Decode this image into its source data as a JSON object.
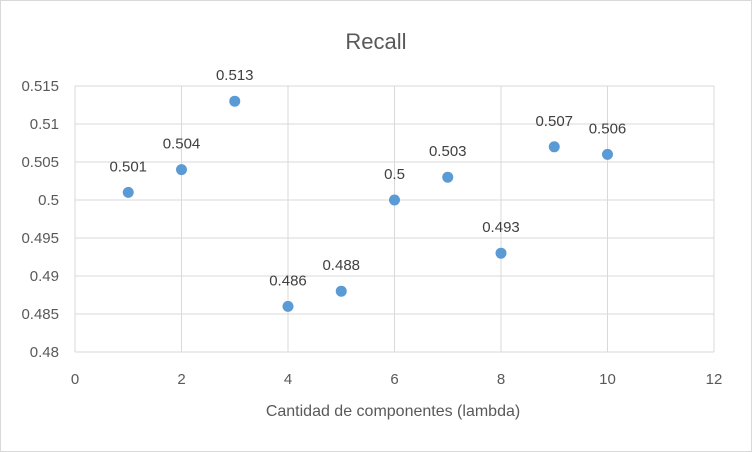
{
  "chart_data": {
    "type": "scatter",
    "title": "Recall",
    "xlabel": "Cantidad de componentes (lambda)",
    "ylabel": "",
    "xlim": [
      0,
      12
    ],
    "ylim": [
      0.48,
      0.515
    ],
    "x_ticks": [
      "0",
      "2",
      "4",
      "6",
      "8",
      "10",
      "12"
    ],
    "y_ticks": [
      "0.48",
      "0.485",
      "0.49",
      "0.495",
      "0.5",
      "0.505",
      "0.51",
      "0.515"
    ],
    "grid": true,
    "legend": "none",
    "marker_color": "#5B9BD5",
    "series": [
      {
        "x": [
          1,
          2,
          3,
          4,
          5,
          6,
          7,
          8,
          9,
          10
        ],
        "y": [
          0.501,
          0.504,
          0.513,
          0.486,
          0.488,
          0.5,
          0.503,
          0.493,
          0.507,
          0.506
        ],
        "labels": [
          "0.501",
          "0.504",
          "0.513",
          "0.486",
          "0.488",
          "0.5",
          "0.503",
          "0.493",
          "0.507",
          "0.506"
        ]
      }
    ]
  }
}
